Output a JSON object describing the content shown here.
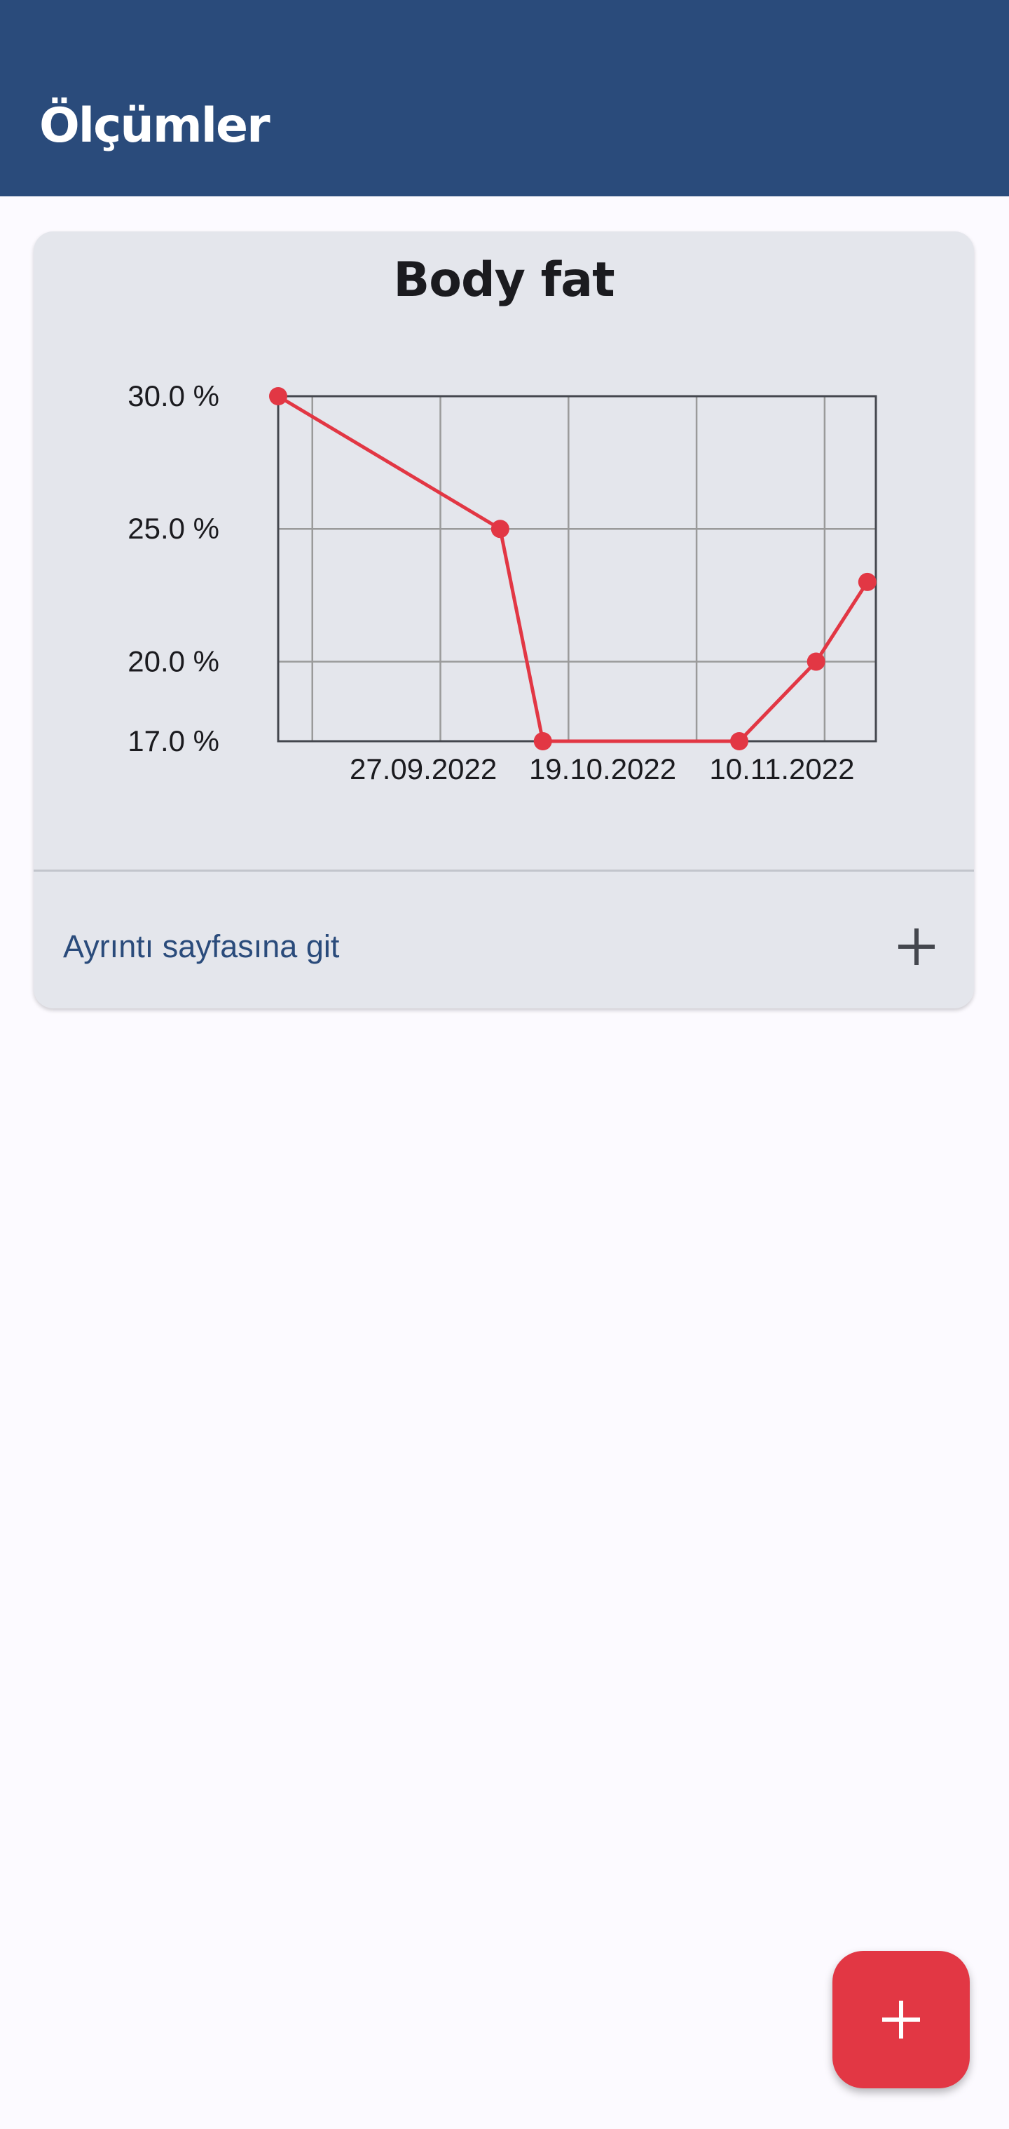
{
  "app_bar": {
    "title": "Ölçümler"
  },
  "card": {
    "title": "Body fat",
    "details_link_label": "Ayrıntı sayfasına git",
    "add_icon": "plus-icon"
  },
  "fab": {
    "icon": "plus-icon"
  },
  "colors": {
    "primary": "#2a4b7b",
    "accent": "#e23744",
    "card_background": "#e4e6ec",
    "page_background": "#fcfaff"
  },
  "chart_data": {
    "type": "line",
    "title": "Body fat",
    "xlabel": "",
    "ylabel": "",
    "x_tick_labels": [
      "27.09.2022",
      "19.10.2022",
      "10.11.2022"
    ],
    "y_tick_labels": [
      "30.0 %",
      "25.0 %",
      "20.0 %",
      "17.0 %"
    ],
    "y_ticks": [
      30,
      25,
      20,
      17
    ],
    "ylim": [
      17,
      30
    ],
    "xlim": [
      "2022-09-12",
      "2022-11-21"
    ],
    "grid": true,
    "legend": "none",
    "series": [
      {
        "color": "#e23744",
        "points": [
          {
            "x": "2022-09-12",
            "y": 30.0
          },
          {
            "x": "2022-10-08",
            "y": 25.0
          },
          {
            "x": "2022-10-13",
            "y": 17.0
          },
          {
            "x": "2022-11-05",
            "y": 17.0
          },
          {
            "x": "2022-11-14",
            "y": 20.0
          },
          {
            "x": "2022-11-20",
            "y": 23.0
          }
        ]
      }
    ]
  }
}
